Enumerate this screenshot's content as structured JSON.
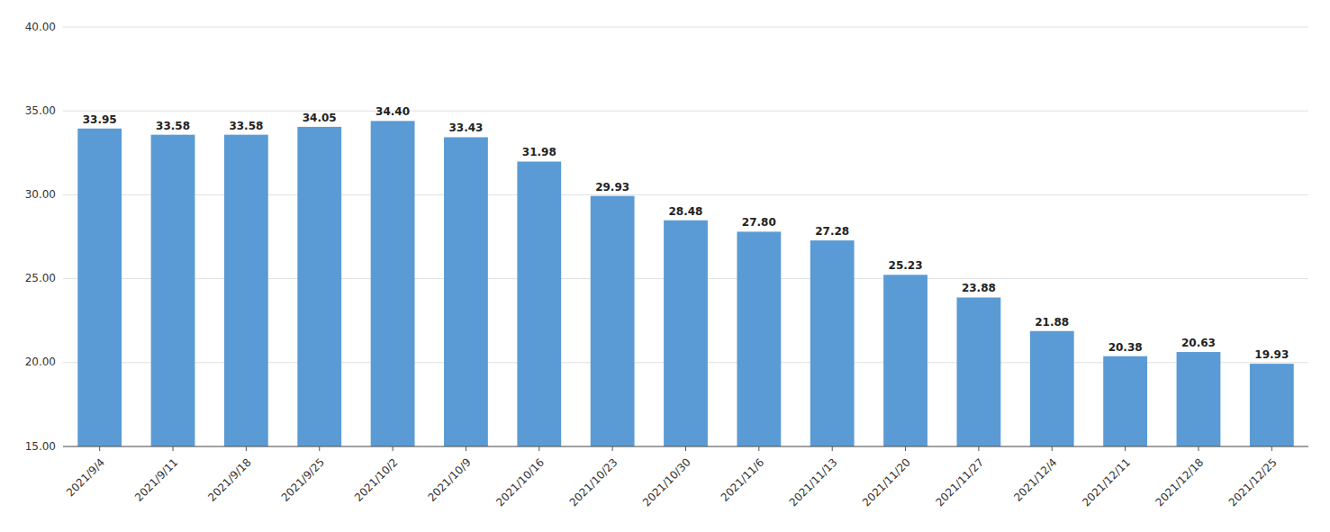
{
  "chart_data": {
    "type": "bar",
    "categories": [
      "2021/9/4",
      "2021/9/11",
      "2021/9/18",
      "2021/9/25",
      "2021/10/2",
      "2021/10/9",
      "2021/10/16",
      "2021/10/23",
      "2021/10/30",
      "2021/11/6",
      "2021/11/13",
      "2021/11/20",
      "2021/11/27",
      "2021/12/4",
      "2021/12/11",
      "2021/12/18",
      "2021/12/25"
    ],
    "values": [
      33.95,
      33.58,
      33.58,
      34.05,
      34.4,
      33.43,
      31.98,
      29.93,
      28.48,
      27.8,
      27.28,
      25.23,
      23.88,
      21.88,
      20.38,
      20.63,
      19.93
    ],
    "value_labels": [
      "33.95",
      "33.58",
      "33.58",
      "34.05",
      "34.40",
      "33.43",
      "31.98",
      "29.93",
      "28.48",
      "27.80",
      "27.28",
      "25.23",
      "23.88",
      "21.88",
      "20.38",
      "20.63",
      "19.93"
    ],
    "color": "#5B9BD5",
    "ylim": [
      15.0,
      40.0
    ],
    "yticks": [
      {
        "value": 15.0,
        "label": "15.00"
      },
      {
        "value": 20.0,
        "label": "20.00"
      },
      {
        "value": 25.0,
        "label": "25.00"
      },
      {
        "value": 30.0,
        "label": "30.00"
      },
      {
        "value": 35.0,
        "label": "35.00"
      },
      {
        "value": 40.0,
        "label": "40.00"
      }
    ],
    "grid": true,
    "data_labels": true
  }
}
